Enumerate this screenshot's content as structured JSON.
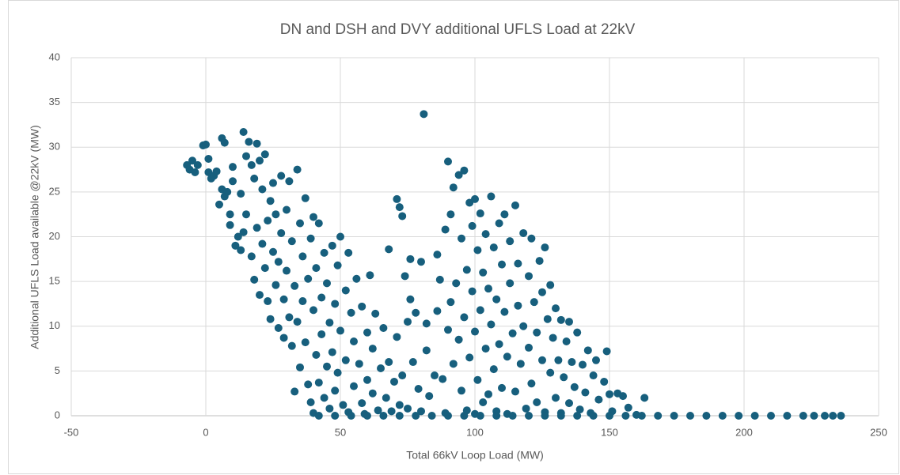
{
  "chart_data": {
    "type": "scatter",
    "title": "DN and DSH and DVY additional UFLS Load at 22kV",
    "x_label": "Total 66kV Loop Load (MW)",
    "y_label": "Additional UFLS Load available @22kV (MW)",
    "color": "#175f7d",
    "xlim": [
      -50,
      250
    ],
    "xticks": [
      -50,
      0,
      50,
      100,
      150,
      200,
      250
    ],
    "ylim": [
      0,
      40
    ],
    "yticks": [
      0,
      5,
      10,
      15,
      20,
      25,
      30,
      35,
      40
    ],
    "grid": true,
    "x": [
      -7,
      -6,
      -5,
      -4,
      -3,
      -1,
      0,
      1,
      1,
      2,
      3,
      4,
      5,
      6,
      6,
      7,
      7,
      8,
      9,
      9,
      10,
      10,
      11,
      12,
      13,
      13,
      14,
      14,
      15,
      15,
      16,
      17,
      17,
      18,
      18,
      19,
      19,
      20,
      20,
      21,
      21,
      22,
      22,
      23,
      23,
      24,
      24,
      25,
      25,
      26,
      26,
      27,
      27,
      28,
      28,
      29,
      29,
      30,
      30,
      31,
      31,
      32,
      32,
      33,
      33,
      34,
      34,
      35,
      35,
      36,
      36,
      37,
      37,
      38,
      38,
      39,
      39,
      40,
      40,
      40,
      41,
      41,
      42,
      42,
      43,
      43,
      44,
      44,
      45,
      45,
      46,
      46,
      47,
      47,
      48,
      48,
      49,
      49,
      50,
      50,
      51,
      52,
      52,
      53,
      53,
      54,
      55,
      55,
      56,
      57,
      58,
      58,
      59,
      60,
      60,
      61,
      62,
      62,
      63,
      64,
      65,
      66,
      67,
      68,
      68,
      69,
      70,
      71,
      71,
      72,
      72,
      73,
      73,
      74,
      75,
      75,
      76,
      76,
      77,
      78,
      79,
      80,
      80,
      81,
      82,
      82,
      83,
      85,
      86,
      86,
      87,
      88,
      89,
      89,
      90,
      90,
      91,
      91,
      92,
      92,
      93,
      94,
      94,
      95,
      95,
      96,
      96,
      97,
      97,
      98,
      98,
      99,
      99,
      100,
      100,
      100,
      101,
      101,
      102,
      102,
      103,
      103,
      104,
      104,
      105,
      105,
      106,
      106,
      107,
      107,
      108,
      108,
      109,
      109,
      110,
      110,
      111,
      111,
      112,
      112,
      113,
      113,
      114,
      115,
      115,
      116,
      116,
      117,
      118,
      118,
      119,
      120,
      120,
      121,
      121,
      122,
      123,
      123,
      124,
      125,
      125,
      126,
      126,
      127,
      128,
      128,
      129,
      130,
      130,
      131,
      132,
      132,
      133,
      134,
      135,
      135,
      136,
      137,
      138,
      139,
      140,
      141,
      142,
      143,
      144,
      145,
      146,
      148,
      149,
      150,
      151,
      153,
      155,
      157,
      160,
      163,
      42,
      48,
      54,
      60,
      66,
      72,
      78,
      84,
      90,
      96,
      102,
      108,
      114,
      120,
      126,
      132,
      138,
      144,
      150,
      156,
      162,
      168,
      174,
      180,
      186,
      192,
      198,
      204,
      210,
      216,
      222,
      226,
      230,
      233,
      236
    ],
    "values": [
      28,
      27.5,
      28.5,
      27.2,
      28,
      30.2,
      30.3,
      28.7,
      27.2,
      26.5,
      26.8,
      27.3,
      23.6,
      31,
      25.3,
      30.5,
      24.5,
      25,
      22.5,
      21.3,
      27.8,
      26.2,
      19,
      20,
      18.5,
      24.8,
      31.7,
      20.5,
      29,
      22.5,
      30.6,
      28,
      17.8,
      15.2,
      26.5,
      30.4,
      21,
      28.5,
      13.5,
      19.2,
      25.3,
      29.2,
      16.5,
      12.8,
      21.8,
      10.8,
      24,
      18.3,
      26,
      14.6,
      22.5,
      17.2,
      9.8,
      26.8,
      20.4,
      13,
      8.7,
      23,
      16.2,
      11,
      26.2,
      19.5,
      7.8,
      14.5,
      2.7,
      27.5,
      10.5,
      21.5,
      5.4,
      17.8,
      12.8,
      24.3,
      8.2,
      3.5,
      15.3,
      19.8,
      1.5,
      22.2,
      11.8,
      0.3,
      6.8,
      16.5,
      21.5,
      3.7,
      13.2,
      9.1,
      2,
      18.2,
      14.8,
      5.5,
      10.4,
      0.8,
      19,
      7.1,
      12.5,
      2.8,
      16.8,
      4.8,
      20,
      9.5,
      1.2,
      14,
      6.2,
      18.2,
      0.4,
      11.5,
      3.3,
      8.3,
      15.3,
      5.8,
      1.4,
      12.2,
      0.2,
      9.3,
      4,
      15.7,
      2.5,
      7.5,
      11.4,
      0.6,
      5.3,
      9.8,
      2,
      18.6,
      6,
      0.5,
      3.8,
      24.2,
      8.8,
      23.3,
      1.2,
      22.3,
      4.5,
      15.6,
      10.5,
      0.8,
      17.5,
      13,
      6,
      11.5,
      3,
      17.2,
      0.5,
      33.7,
      7.3,
      10.3,
      2.2,
      4.5,
      18,
      11.7,
      15.2,
      4.1,
      20.8,
      0.3,
      28.4,
      9.6,
      22.5,
      12.7,
      25.5,
      5.8,
      14.8,
      26.9,
      8.5,
      19.8,
      2.8,
      27.4,
      11,
      16.3,
      0.6,
      23.8,
      6.5,
      21.2,
      13.9,
      24.2,
      9.4,
      0.2,
      18.5,
      4,
      22.6,
      11.8,
      16,
      1.5,
      20.3,
      7.5,
      14.2,
      2.4,
      24.5,
      10.2,
      18.8,
      5.2,
      13,
      0.5,
      21.5,
      8,
      16.9,
      3.1,
      22.5,
      11.6,
      6.6,
      0.2,
      19.5,
      14.8,
      9.2,
      23.5,
      2.7,
      17,
      12.3,
      5.8,
      20.4,
      10,
      0.8,
      15.6,
      7.6,
      19.8,
      3.6,
      12.7,
      9.3,
      1.5,
      17.3,
      6.2,
      13.8,
      18.8,
      0.4,
      10.8,
      4.8,
      14.6,
      8.7,
      12,
      2,
      6.2,
      10.7,
      0.3,
      4.3,
      8.3,
      10.5,
      1.4,
      6,
      3.2,
      9.3,
      0.7,
      5.7,
      2.6,
      7.3,
      0.3,
      4.5,
      6.2,
      1.8,
      3.8,
      7.2,
      2.4,
      0.5,
      2.5,
      2.2,
      0.9,
      0.1,
      2,
      0,
      0,
      0,
      0,
      0,
      0,
      0,
      0,
      0,
      0,
      0,
      0,
      0,
      0,
      0,
      0,
      0,
      0,
      0,
      0,
      0,
      0,
      0,
      0,
      0,
      0,
      0,
      0,
      0,
      0,
      0,
      0,
      0,
      0,
      0
    ]
  }
}
